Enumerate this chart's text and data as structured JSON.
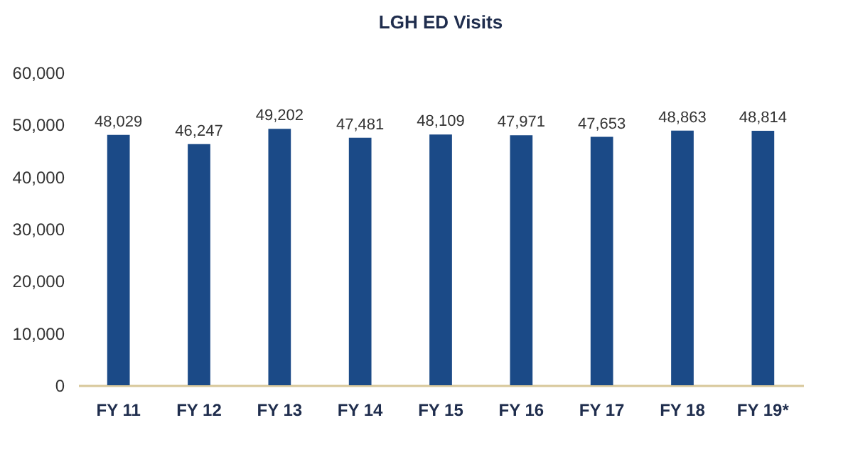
{
  "chart_data": {
    "type": "bar",
    "title": "LGH ED Visits",
    "categories": [
      "FY 11",
      "FY 12",
      "FY 13",
      "FY 14",
      "FY 15",
      "FY 16",
      "FY 17",
      "FY 18",
      "FY 19*"
    ],
    "values": [
      48029,
      46247,
      49202,
      47481,
      48109,
      47971,
      47653,
      48863,
      48814
    ],
    "value_labels": [
      "48,029",
      "46,247",
      "49,202",
      "47,481",
      "48,109",
      "47,971",
      "47,653",
      "48,863",
      "48,814"
    ],
    "color": "#1b4a87",
    "ylim": [
      0,
      60000
    ],
    "yticks": [
      {
        "value": 0,
        "label": "0"
      },
      {
        "value": 10000,
        "label": "10,000"
      },
      {
        "value": 20000,
        "label": "20,000"
      },
      {
        "value": 30000,
        "label": "30,000"
      },
      {
        "value": 40000,
        "label": "40,000"
      },
      {
        "value": 50000,
        "label": "50,000"
      },
      {
        "value": 60000,
        "label": "60,000"
      }
    ]
  }
}
